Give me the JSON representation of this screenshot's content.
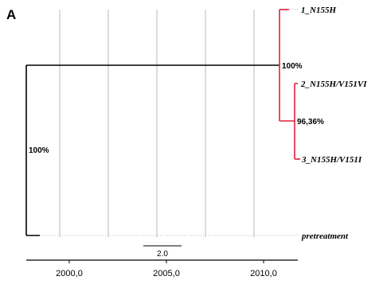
{
  "panel_label": "A",
  "tips": {
    "t1": "1_N155H",
    "t2": "2_N155H/V151VI",
    "t3": "3_N155H/V151I",
    "t4": "pretreatment"
  },
  "node_support": {
    "root": "100%",
    "clade": "100%",
    "inner": "96,36%"
  },
  "scale_bar": {
    "label": "2.0"
  },
  "time_axis": {
    "ticks": [
      "2000,0",
      "2005,0",
      "2010,0"
    ]
  },
  "colors": {
    "lineage_highlight": "#e0203a",
    "branches": "#000000",
    "gridlines": "#b8b8b8"
  }
}
